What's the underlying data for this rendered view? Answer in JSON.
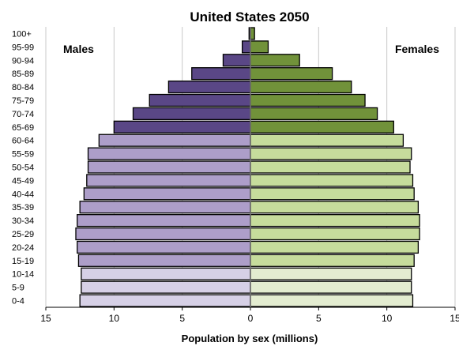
{
  "chart_data": {
    "type": "bar",
    "orientation": "horizontal-pyramid",
    "title": "United States  2050",
    "xlabel": "Population by sex (millions)",
    "xlim": [
      -15,
      15
    ],
    "xticks": [
      -15,
      -10,
      -5,
      0,
      5,
      10,
      15
    ],
    "xtick_labels": [
      "15",
      "10",
      "5",
      "0",
      "5",
      "10",
      "15"
    ],
    "grid": true,
    "categories": [
      "0-4",
      "5-9",
      "10-14",
      "15-19",
      "20-24",
      "25-29",
      "30-34",
      "35-39",
      "40-44",
      "45-49",
      "50-54",
      "55-59",
      "60-64",
      "65-69",
      "70-74",
      "75-79",
      "80-84",
      "85-89",
      "90-94",
      "95-99",
      "100+"
    ],
    "series": [
      {
        "name": "Males",
        "values": [
          12.5,
          12.4,
          12.4,
          12.6,
          12.7,
          12.8,
          12.7,
          12.5,
          12.2,
          12.0,
          11.9,
          11.9,
          11.1,
          10.0,
          8.6,
          7.4,
          6.0,
          4.3,
          2.0,
          0.6,
          0.1
        ],
        "colors": [
          "#d6d0e6",
          "#d6d0e6",
          "#d6d0e6",
          "#ad9ec9",
          "#ad9ec9",
          "#ad9ec9",
          "#ad9ec9",
          "#ad9ec9",
          "#ad9ec9",
          "#ad9ec9",
          "#ad9ec9",
          "#ad9ec9",
          "#ad9ec9",
          "#5a4786",
          "#5a4786",
          "#5a4786",
          "#5a4786",
          "#5a4786",
          "#5a4786",
          "#5a4786",
          "#5a4786"
        ]
      },
      {
        "name": "Females",
        "values": [
          11.9,
          11.8,
          11.8,
          12.0,
          12.3,
          12.4,
          12.4,
          12.3,
          12.0,
          11.9,
          11.7,
          11.8,
          11.2,
          10.5,
          9.3,
          8.4,
          7.4,
          6.0,
          3.6,
          1.3,
          0.3
        ],
        "colors": [
          "#e3ecd0",
          "#e3ecd0",
          "#e3ecd0",
          "#c6dc9c",
          "#c6dc9c",
          "#c6dc9c",
          "#c6dc9c",
          "#c6dc9c",
          "#c6dc9c",
          "#c6dc9c",
          "#c6dc9c",
          "#c6dc9c",
          "#c6dc9c",
          "#71923a",
          "#71923a",
          "#71923a",
          "#71923a",
          "#71923a",
          "#71923a",
          "#71923a",
          "#71923a"
        ]
      }
    ]
  }
}
